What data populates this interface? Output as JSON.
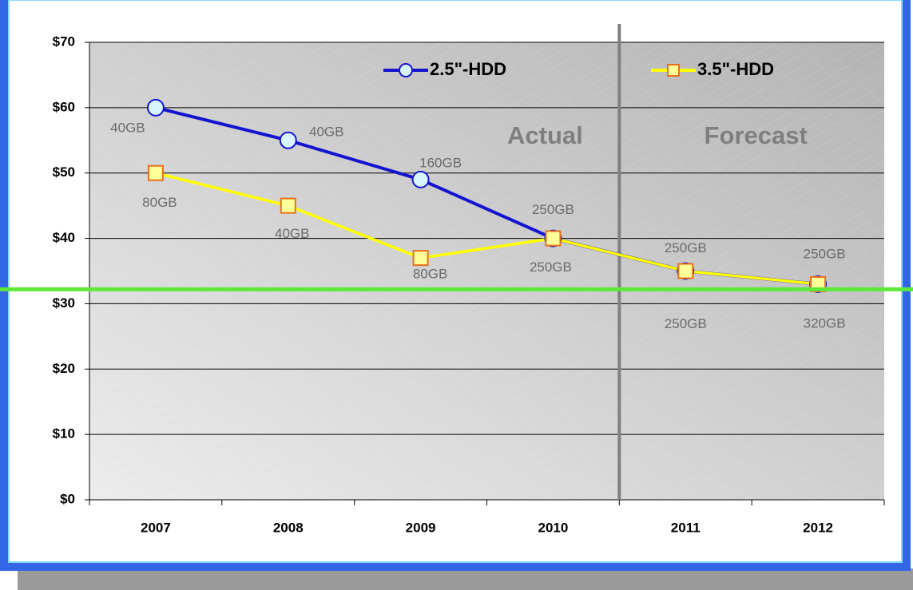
{
  "chart_data": {
    "type": "line",
    "categories": [
      "2007",
      "2008",
      "2009",
      "2010",
      "2011",
      "2012"
    ],
    "series": [
      {
        "name": "2.5\"-HDD",
        "color": "#1414d0",
        "marker": "circle",
        "marker_fill": "#d8f4ff",
        "values": [
          60,
          55,
          49,
          40,
          35,
          33
        ],
        "point_labels": [
          "40GB",
          "40GB",
          "160GB",
          "250GB",
          "250GB",
          "250GB"
        ]
      },
      {
        "name": "3.5\"-HDD",
        "color": "#ffff00",
        "marker": "square",
        "marker_fill": "#ffff99",
        "marker_stroke": "#e8701c",
        "values": [
          50,
          45,
          37,
          40,
          35,
          33
        ],
        "point_labels": [
          "80GB",
          "40GB",
          "80GB",
          "250GB",
          "250GB",
          "320GB"
        ]
      }
    ],
    "ylim": [
      0,
      70
    ],
    "yticks": [
      {
        "value": 0,
        "label": "$0"
      },
      {
        "value": 10,
        "label": "$10"
      },
      {
        "value": 20,
        "label": "$20"
      },
      {
        "value": 30,
        "label": "$30"
      },
      {
        "value": 40,
        "label": "$40"
      },
      {
        "value": 50,
        "label": "$50"
      },
      {
        "value": 60,
        "label": "$60"
      },
      {
        "value": 70,
        "label": "$70"
      }
    ],
    "grid": true,
    "annotations": [
      "Actual",
      "Forecast"
    ],
    "forecast_start": "2011",
    "reference_line": {
      "value": 32.2,
      "color": "#5ee83a"
    }
  }
}
